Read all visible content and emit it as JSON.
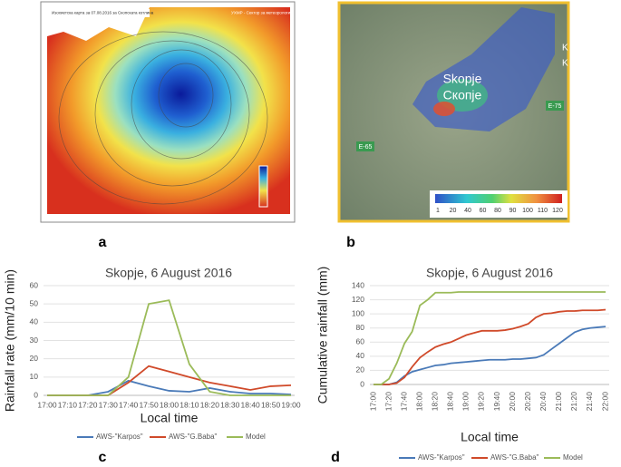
{
  "panel_labels": [
    "a",
    "b",
    "c",
    "d"
  ],
  "map_a": {
    "title": "Изохиетска карта за 07.08.2016 за Скопската котлина",
    "source": "УХМР - Сектор за метеорологија"
  },
  "map_b": {
    "city": "Skopje",
    "city_cyrillic": "Скопје",
    "roads": [
      "E-75",
      "E-65"
    ],
    "marker": "K",
    "legend_labels": [
      1,
      20,
      40,
      60,
      80,
      90,
      100,
      110,
      120
    ]
  },
  "chart_data": [
    {
      "type": "line",
      "title": "Skopje, 6 August 2016",
      "xlabel": "Local time",
      "ylabel": "Rainfall rate (mm/10 min)",
      "categories": [
        "17:00",
        "17:10",
        "17:20",
        "17:30",
        "17:40",
        "17:50",
        "18:00",
        "18:10",
        "18:20",
        "18:30",
        "18:40",
        "18:50",
        "19:00"
      ],
      "series": [
        {
          "name": "AWS-\"Karpos\"",
          "color": "#4a7ab8",
          "values": [
            0,
            0,
            0,
            2,
            8,
            5,
            2.5,
            2,
            4,
            2,
            1,
            1,
            0.5
          ]
        },
        {
          "name": "AWS-\"G.Baba\"",
          "color": "#d04a2a",
          "values": [
            0,
            0,
            0,
            0,
            7,
            16,
            13,
            10,
            7,
            5,
            3,
            5,
            5.5
          ]
        },
        {
          "name": "Model",
          "color": "#9bbb59",
          "values": [
            0,
            0,
            0,
            0,
            10,
            50,
            52,
            17,
            2,
            0,
            0,
            0,
            0
          ]
        }
      ],
      "ylim": [
        0,
        60
      ],
      "yticks": [
        0,
        10,
        20,
        30,
        40,
        50,
        60
      ],
      "grid": true,
      "legend": "bottom"
    },
    {
      "type": "line",
      "title": "Skopje, 6 August 2016",
      "xlabel": "Local time",
      "ylabel": "Cumulative rainfall (mm)",
      "categories": [
        "17:00",
        null,
        "17:20",
        null,
        "17:40",
        null,
        "18:00",
        null,
        "18:20",
        null,
        "18:40",
        null,
        "19:00",
        null,
        "19:20",
        null,
        "19:40",
        null,
        "20:00",
        null,
        "20:20",
        null,
        "20:40",
        null,
        "21:00",
        null,
        "21:20",
        null,
        "21:40",
        null,
        "22:00"
      ],
      "series": [
        {
          "name": "AWS-\"Karpos\"",
          "color": "#4a7ab8",
          "values": [
            0,
            0,
            0,
            3,
            12,
            18,
            21,
            24,
            27,
            28,
            30,
            31,
            32,
            33,
            34,
            35,
            35,
            35,
            36,
            36,
            37,
            38,
            42,
            50,
            58,
            66,
            74,
            78,
            80,
            81,
            82
          ]
        },
        {
          "name": "AWS-\"G.Baba\"",
          "color": "#d04a2a",
          "values": [
            0,
            0,
            0,
            2,
            10,
            25,
            38,
            46,
            53,
            57,
            60,
            65,
            70,
            73,
            76,
            76,
            76,
            77,
            79,
            82,
            86,
            95,
            100,
            101,
            103,
            104,
            104,
            105,
            105,
            105,
            106
          ]
        },
        {
          "name": "Model",
          "color": "#9bbb59",
          "values": [
            0,
            0,
            8,
            30,
            58,
            75,
            112,
            120,
            130,
            130,
            130,
            131,
            131,
            131,
            131,
            131,
            131,
            131,
            131,
            131,
            131,
            131,
            131,
            131,
            131,
            131,
            131,
            131,
            131,
            131,
            131
          ]
        }
      ],
      "ylim": [
        0,
        140
      ],
      "yticks": [
        0,
        20,
        40,
        60,
        80,
        100,
        120,
        140
      ],
      "grid": true,
      "legend": "bottom"
    }
  ]
}
